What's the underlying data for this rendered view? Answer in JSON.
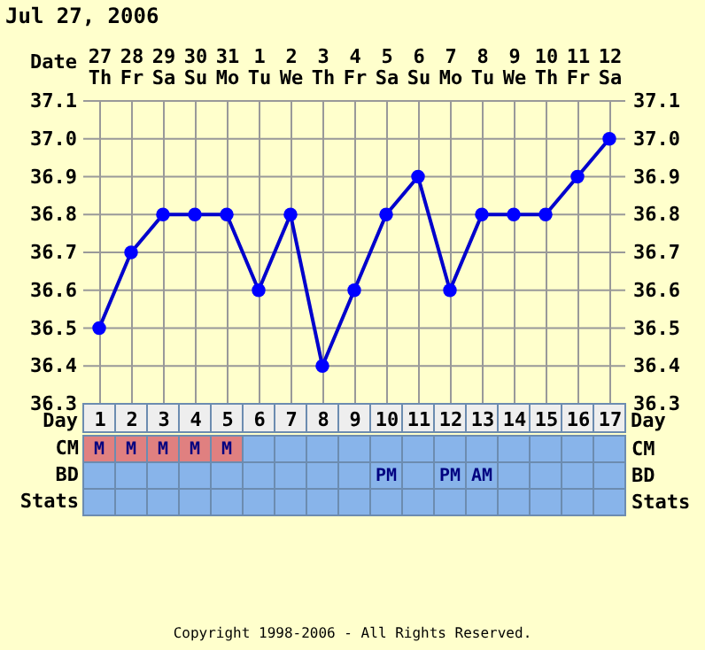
{
  "chart_data": [
    {
      "type": "line",
      "title": "Jul 27, 2006",
      "xlabel": "Date",
      "categories": [
        "27 Th",
        "28 Fr",
        "29 Sa",
        "30 Su",
        "31 Mo",
        "1 Tu",
        "2 We",
        "3 Th",
        "4 Fr",
        "5 Sa",
        "6 Su",
        "7 Mo",
        "8 Tu",
        "9 We",
        "10 Th",
        "11 Fr",
        "12 Sa"
      ],
      "series": [
        {
          "color": "#0000cc",
          "values": [
            36.5,
            36.7,
            36.8,
            36.8,
            36.8,
            36.6,
            36.8,
            36.4,
            36.6,
            36.8,
            36.9,
            36.6,
            36.8,
            36.8,
            36.8,
            36.9,
            37.0
          ]
        }
      ],
      "ylim": [
        36.3,
        37.1
      ],
      "yticks": [
        36.3,
        36.4,
        36.5,
        36.6,
        36.7,
        36.8,
        36.9,
        {
          "value": 37,
          "label": "37.0"
        },
        37.1
      ],
      "y2lim": [
        36.3,
        37.1
      ],
      "y2ticks": [
        36.3,
        36.4,
        36.5,
        36.6,
        36.7,
        36.8,
        36.9,
        {
          "value": 37,
          "label": "37.0"
        },
        37.1
      ],
      "x2label": "Day",
      "x2lim": [
        0.5,
        17.5
      ],
      "x2ticks": [
        1,
        2,
        3,
        4,
        5,
        6,
        7,
        8,
        9,
        10,
        11,
        12,
        13,
        14,
        15,
        16,
        17
      ],
      "grid": true,
      "marker": "circle",
      "line_style": "solid"
    },
    {
      "type": "other",
      "y_categories": [
        "CM",
        "BD",
        "Stats"
      ],
      "cell_labels": [
        [
          "M",
          "M",
          "M",
          "M",
          "M",
          null,
          null,
          null,
          null,
          null,
          null,
          null,
          null,
          null,
          null,
          null,
          null
        ],
        [
          null,
          null,
          null,
          null,
          null,
          null,
          null,
          null,
          null,
          "PM",
          null,
          "PM",
          "AM",
          null,
          null,
          null,
          null
        ],
        [
          null,
          null,
          null,
          null,
          null,
          null,
          null,
          null,
          null,
          null,
          null,
          null,
          null,
          null,
          null,
          null,
          null
        ]
      ],
      "colors": [
        [
          "#e08080",
          "#e08080",
          "#e08080",
          "#e08080",
          "#e08080",
          "#88b4ea",
          "#88b4ea",
          "#88b4ea",
          "#88b4ea",
          "#88b4ea",
          "#88b4ea",
          "#88b4ea",
          "#88b4ea",
          "#88b4ea",
          "#88b4ea",
          "#88b4ea",
          "#88b4ea"
        ],
        [
          "#88b4ea",
          "#88b4ea",
          "#88b4ea",
          "#88b4ea",
          "#88b4ea",
          "#88b4ea",
          "#88b4ea",
          "#88b4ea",
          "#88b4ea",
          "#88b4ea",
          "#88b4ea",
          "#88b4ea",
          "#88b4ea",
          "#88b4ea",
          "#88b4ea",
          "#88b4ea",
          "#88b4ea"
        ],
        [
          "#88b4ea",
          "#88b4ea",
          "#88b4ea",
          "#88b4ea",
          "#88b4ea",
          "#88b4ea",
          "#88b4ea",
          "#88b4ea",
          "#88b4ea",
          "#88b4ea",
          "#88b4ea",
          "#88b4ea",
          "#88b4ea",
          "#88b4ea",
          "#88b4ea",
          "#88b4ea",
          "#88b4ea"
        ]
      ],
      "annotations": [
        "Copyright 1998-2006 - All Rights Reserved."
      ]
    }
  ]
}
